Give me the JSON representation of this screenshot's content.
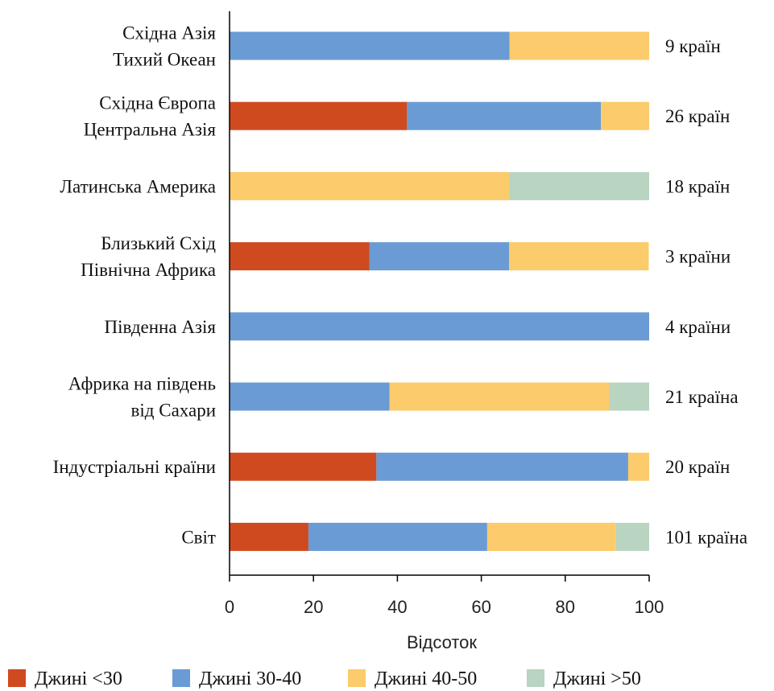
{
  "chart_data": {
    "type": "bar",
    "orientation": "horizontal",
    "stacked": true,
    "categories": [
      [
        "Східна Азія",
        "Тихий Океан"
      ],
      [
        "Східна Європа",
        "Центральна Азія"
      ],
      [
        "Латинська Америка"
      ],
      [
        "Близький Схід",
        "Північна Африка"
      ],
      [
        "Південна Азія"
      ],
      [
        "Африка на південь",
        "від Сахари"
      ],
      [
        "Індустріальні країни"
      ],
      [
        "Світ"
      ]
    ],
    "country_counts": [
      "9 країн",
      "26 країн",
      "18 країн",
      "3 країни",
      "4 країни",
      "21 країна",
      "20 країн",
      "101 країна"
    ],
    "series": [
      {
        "name": "Джині <30",
        "color": "#d04a1f",
        "values": [
          0,
          42.3,
          0,
          33.3,
          0,
          0,
          35,
          18.8
        ]
      },
      {
        "name": "Джині 30-40",
        "color": "#6a9bd4",
        "values": [
          66.7,
          46.2,
          0,
          33.3,
          100,
          38.1,
          60,
          42.6
        ]
      },
      {
        "name": "Джині 40-50",
        "color": "#fccb6b",
        "values": [
          33.3,
          11.5,
          66.7,
          33.3,
          0,
          52.4,
          5,
          30.7
        ]
      },
      {
        "name": "Джині >50",
        "color": "#b9d4c1",
        "values": [
          0,
          0,
          33.3,
          0,
          0,
          9.5,
          0,
          7.9
        ]
      }
    ],
    "x_ticks": [
      "0",
      "20",
      "40",
      "60",
      "80",
      "100"
    ],
    "xlim": [
      0,
      100
    ],
    "xlabel": "Відсоток",
    "legend_position": "bottom",
    "grid": false
  }
}
